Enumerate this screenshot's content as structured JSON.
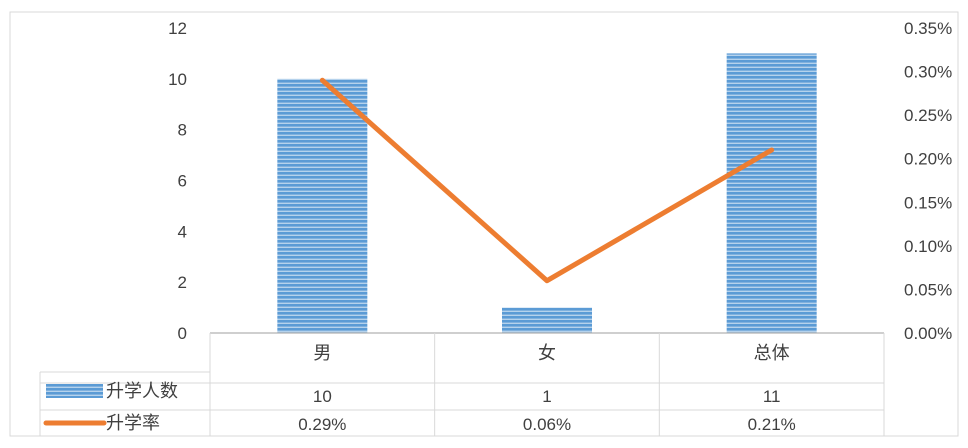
{
  "colors": {
    "bar": "#5B9BD5",
    "bar_stripe": "#ffffff",
    "line": "#ED7D31",
    "grid": "#d9d9d9",
    "text": "#404040"
  },
  "chart_data": {
    "type": "bar",
    "categories": [
      "男",
      "女",
      "总体"
    ],
    "series": [
      {
        "name": "升学人数",
        "type": "bar",
        "axis": "left",
        "values": [
          10,
          1,
          11
        ],
        "labels": [
          "10",
          "1",
          "11"
        ]
      },
      {
        "name": "升学率",
        "type": "line",
        "axis": "right",
        "values": [
          0.29,
          0.06,
          0.21
        ],
        "labels": [
          "0.29%",
          "0.06%",
          "0.21%"
        ]
      }
    ],
    "y_left": {
      "min": 0,
      "max": 12,
      "ticks": [
        0,
        2,
        4,
        6,
        8,
        10,
        12
      ],
      "tick_labels": [
        "0",
        "2",
        "4",
        "6",
        "8",
        "10",
        "12"
      ]
    },
    "y_right": {
      "min": 0,
      "max": 0.35,
      "ticks": [
        0,
        0.05,
        0.1,
        0.15,
        0.2,
        0.25,
        0.3,
        0.35
      ],
      "tick_labels": [
        "0.00%",
        "0.05%",
        "0.10%",
        "0.15%",
        "0.20%",
        "0.25%",
        "0.30%",
        "0.35%"
      ]
    },
    "data_table": true,
    "legend_position": "in-table",
    "grid": false
  }
}
